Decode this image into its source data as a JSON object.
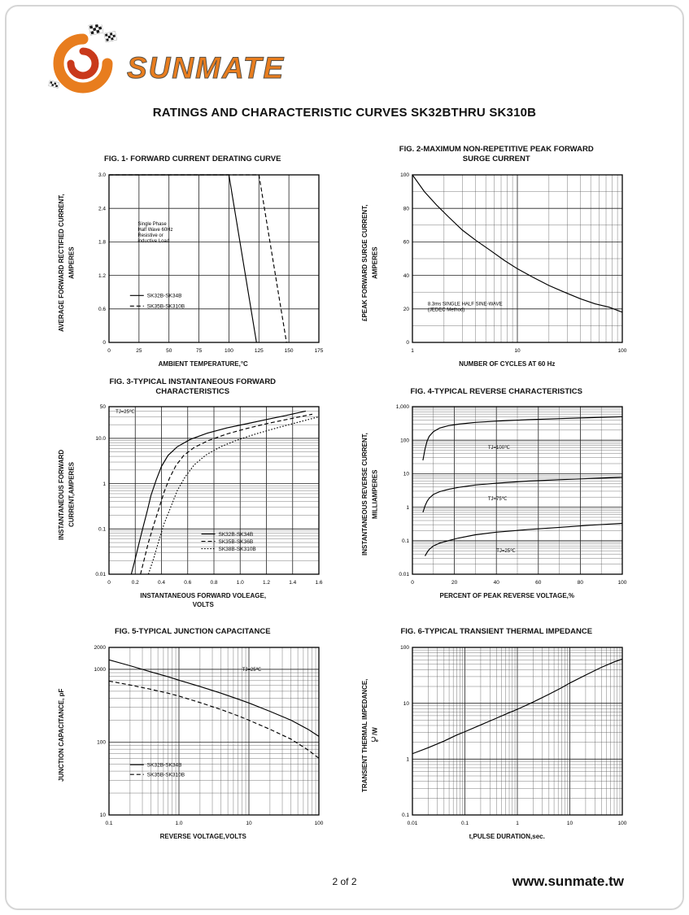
{
  "page": {
    "title": "RATINGS AND CHARACTERISTIC CURVES SK32BTHRU SK310B",
    "page_number": "2 of 2",
    "website": "www.sunmate.tw"
  },
  "brand": {
    "name": "SUNMATE",
    "colors": {
      "orange": "#E87D1E",
      "red": "#C9391B",
      "outline": "#5a5248"
    }
  },
  "chart_data": [
    {
      "id": "fig1",
      "type": "line",
      "title": "FIG. 1- FORWARD CURRENT DERATING CURVE",
      "xlabel": "AMBIENT TEMPERATURE,°C",
      "ylabel": "AVERAGE FORWARD RECTIFIED CURRENT,\nAMPERES",
      "xscale": "linear",
      "xlim": [
        0,
        175
      ],
      "xticks": [
        {
          "v": 0,
          "l": "0"
        },
        {
          "v": 25,
          "l": "25"
        },
        {
          "v": 50,
          "l": "50"
        },
        {
          "v": 75,
          "l": "75"
        },
        {
          "v": 100,
          "l": "100"
        },
        {
          "v": 125,
          "l": "125"
        },
        {
          "v": 150,
          "l": "150"
        },
        {
          "v": 175,
          "l": "175"
        }
      ],
      "yscale": "linear",
      "ylim": [
        0,
        3.0
      ],
      "yticks": [
        {
          "v": 0,
          "l": "0"
        },
        {
          "v": 0.6,
          "l": "0.6"
        },
        {
          "v": 1.2,
          "l": "1.2"
        },
        {
          "v": 1.8,
          "l": "1.8"
        },
        {
          "v": 2.4,
          "l": "2.4"
        },
        {
          "v": 3.0,
          "l": "3.0"
        }
      ],
      "x_minor_div": 1,
      "y_minor_div": 1,
      "series": [
        {
          "name": "SK32B-SK34B",
          "dash": "solid",
          "points": [
            [
              0,
              3
            ],
            [
              100,
              3
            ],
            [
              123,
              0
            ]
          ]
        },
        {
          "name": "SK35B-SK310B",
          "dash": "dashed",
          "points": [
            [
              0,
              3
            ],
            [
              125,
              3
            ],
            [
              148,
              0
            ]
          ]
        }
      ],
      "annotations": [
        {
          "text": "Single Phase\nHalf Wave 60Hz\nResistive or\ninductive Load",
          "x": 24,
          "y": 2.1,
          "anchor": "start"
        }
      ],
      "legend": {
        "x": 0.1,
        "y": 0.72,
        "spacing": 13
      }
    },
    {
      "id": "fig2",
      "type": "line",
      "title": "FIG. 2-MAXIMUM NON-REPETITIVE PEAK FORWARD\nSURGE CURRENT",
      "xlabel": "NUMBER OF CYCLES AT 60 Hz",
      "ylabel": "£PEAK  FORWARD SURGE CURRENT,\nAMPERES",
      "xscale": "log",
      "xlim": [
        1,
        100
      ],
      "xticks": [
        {
          "v": 1,
          "l": "1"
        },
        {
          "v": 10,
          "l": "10"
        },
        {
          "v": 100,
          "l": "100"
        }
      ],
      "yscale": "linear",
      "ylim": [
        0,
        100
      ],
      "yticks": [
        {
          "v": 0,
          "l": "0"
        },
        {
          "v": 20,
          "l": "20"
        },
        {
          "v": 40,
          "l": "40"
        },
        {
          "v": 60,
          "l": "60"
        },
        {
          "v": 80,
          "l": "80"
        },
        {
          "v": 100,
          "l": "100"
        }
      ],
      "y_minor_div": 2,
      "series": [
        {
          "name": "surge-current",
          "dash": "solid",
          "points": [
            [
              1,
              100
            ],
            [
              1.3,
              90
            ],
            [
              1.7,
              82
            ],
            [
              2.2,
              75
            ],
            [
              3,
              67
            ],
            [
              4,
              61
            ],
            [
              5.5,
              55
            ],
            [
              7.5,
              49
            ],
            [
              10,
              44
            ],
            [
              14,
              39
            ],
            [
              20,
              34
            ],
            [
              28,
              30
            ],
            [
              40,
              26
            ],
            [
              55,
              23
            ],
            [
              75,
              21
            ],
            [
              100,
              18
            ]
          ]
        }
      ],
      "annotations": [
        {
          "text": "8.3ms SINGLE HALF SINE-WAVE\n(JEDEC Method)",
          "x": 1.4,
          "y": 22,
          "anchor": "start"
        }
      ]
    },
    {
      "id": "fig3",
      "type": "line",
      "title": "FIG. 3-TYPICAL INSTANTANEOUS FORWARD\nCHARACTERISTICS",
      "xlabel": "INSTANTANEOUS FORWARD VOLEAGE,\nVOLTS",
      "ylabel": "INSTANTANEOUS FORWARD\nCURRENT,AMPERES",
      "xscale": "linear",
      "xlim": [
        0,
        1.6
      ],
      "xticks": [
        {
          "v": 0,
          "l": "0"
        },
        {
          "v": 0.2,
          "l": "0.2"
        },
        {
          "v": 0.4,
          "l": "0.4"
        },
        {
          "v": 0.6,
          "l": "0.6"
        },
        {
          "v": 0.8,
          "l": "0.8"
        },
        {
          "v": 1.0,
          "l": "1.0"
        },
        {
          "v": 1.2,
          "l": "1.2"
        },
        {
          "v": 1.4,
          "l": "1.4"
        },
        {
          "v": 1.6,
          "l": "1.6"
        }
      ],
      "yscale": "log",
      "ylim": [
        0.01,
        50
      ],
      "yticks": [
        {
          "v": 0.01,
          "l": "0.01"
        },
        {
          "v": 0.1,
          "l": "0.1"
        },
        {
          "v": 1,
          "l": "1"
        },
        {
          "v": 10,
          "l": "10.0"
        },
        {
          "v": 50,
          "l": "50"
        }
      ],
      "x_minor_div": 1,
      "series": [
        {
          "name": "SK32B-SK34B",
          "dash": "solid",
          "points": [
            [
              0.17,
              0.01
            ],
            [
              0.2,
              0.022
            ],
            [
              0.23,
              0.05
            ],
            [
              0.26,
              0.11
            ],
            [
              0.29,
              0.24
            ],
            [
              0.32,
              0.55
            ],
            [
              0.36,
              1.2
            ],
            [
              0.4,
              2.4
            ],
            [
              0.45,
              4.2
            ],
            [
              0.52,
              6.5
            ],
            [
              0.62,
              9.5
            ],
            [
              0.75,
              13
            ],
            [
              0.9,
              17
            ],
            [
              1.05,
              21
            ],
            [
              1.2,
              26
            ],
            [
              1.35,
              32
            ],
            [
              1.5,
              40
            ]
          ]
        },
        {
          "name": "SK35B-SK36B",
          "dash": "dashed",
          "points": [
            [
              0.24,
              0.01
            ],
            [
              0.27,
              0.022
            ],
            [
              0.3,
              0.05
            ],
            [
              0.34,
              0.12
            ],
            [
              0.38,
              0.28
            ],
            [
              0.42,
              0.65
            ],
            [
              0.46,
              1.3
            ],
            [
              0.51,
              2.5
            ],
            [
              0.57,
              4.2
            ],
            [
              0.65,
              6.3
            ],
            [
              0.76,
              9
            ],
            [
              0.9,
              12.5
            ],
            [
              1.05,
              16.5
            ],
            [
              1.2,
              21
            ],
            [
              1.38,
              27
            ],
            [
              1.55,
              34
            ]
          ]
        },
        {
          "name": "SK38B-SK310B",
          "dash": "dotted",
          "points": [
            [
              0.3,
              0.01
            ],
            [
              0.34,
              0.022
            ],
            [
              0.38,
              0.055
            ],
            [
              0.42,
              0.13
            ],
            [
              0.47,
              0.3
            ],
            [
              0.52,
              0.7
            ],
            [
              0.58,
              1.4
            ],
            [
              0.65,
              2.6
            ],
            [
              0.74,
              4.3
            ],
            [
              0.85,
              6.5
            ],
            [
              0.98,
              9.2
            ],
            [
              1.12,
              12.5
            ],
            [
              1.28,
              17
            ],
            [
              1.45,
              23
            ],
            [
              1.6,
              30
            ]
          ]
        }
      ],
      "annotations": [
        {
          "text": "TJ=25℃",
          "x": 0.05,
          "y": 36,
          "anchor": "start"
        }
      ],
      "legend": {
        "x": 0.44,
        "y": 0.76,
        "spacing": 9
      }
    },
    {
      "id": "fig4",
      "type": "line",
      "title": "FIG. 4-TYPICAL REVERSE CHARACTERISTICS",
      "xlabel": "PERCENT OF PEAK REVERSE VOLTAGE,%",
      "ylabel": "INSTANTANEOUS REVERSE CURRENT,\nMILLIAMPERES",
      "xscale": "linear",
      "xlim": [
        0,
        100
      ],
      "xticks": [
        {
          "v": 0,
          "l": "0"
        },
        {
          "v": 20,
          "l": "20"
        },
        {
          "v": 40,
          "l": "40"
        },
        {
          "v": 60,
          "l": "60"
        },
        {
          "v": 80,
          "l": "80"
        },
        {
          "v": 100,
          "l": "100"
        }
      ],
      "yscale": "log",
      "ylim": [
        0.01,
        1000
      ],
      "yticks": [
        {
          "v": 0.01,
          "l": "0.01"
        },
        {
          "v": 0.1,
          "l": "0.1"
        },
        {
          "v": 1,
          "l": "1"
        },
        {
          "v": 10,
          "l": "10"
        },
        {
          "v": 100,
          "l": "100"
        },
        {
          "v": 1000,
          "l": "1,000"
        }
      ],
      "x_minor_div": 2,
      "series": [
        {
          "name": "TJ-100C",
          "dash": "solid",
          "points": [
            [
              5,
              25
            ],
            [
              6,
              55
            ],
            [
              7,
              95
            ],
            [
              8,
              130
            ],
            [
              10,
              180
            ],
            [
              13,
              230
            ],
            [
              17,
              270
            ],
            [
              22,
              300
            ],
            [
              30,
              340
            ],
            [
              40,
              370
            ],
            [
              55,
              410
            ],
            [
              70,
              440
            ],
            [
              85,
              470
            ],
            [
              100,
              500
            ]
          ]
        },
        {
          "name": "TJ-75C",
          "dash": "solid",
          "points": [
            [
              5,
              0.7
            ],
            [
              6,
              1.1
            ],
            [
              7,
              1.5
            ],
            [
              8,
              1.85
            ],
            [
              10,
              2.4
            ],
            [
              13,
              2.9
            ],
            [
              17,
              3.4
            ],
            [
              22,
              3.9
            ],
            [
              30,
              4.6
            ],
            [
              40,
              5.2
            ],
            [
              55,
              6.0
            ],
            [
              70,
              6.6
            ],
            [
              85,
              7.2
            ],
            [
              100,
              7.8
            ]
          ]
        },
        {
          "name": "TJ-25C",
          "dash": "solid",
          "points": [
            [
              6,
              0.035
            ],
            [
              7,
              0.045
            ],
            [
              8,
              0.055
            ],
            [
              10,
              0.07
            ],
            [
              13,
              0.085
            ],
            [
              17,
              0.1
            ],
            [
              22,
              0.12
            ],
            [
              30,
              0.15
            ],
            [
              40,
              0.18
            ],
            [
              55,
              0.215
            ],
            [
              70,
              0.25
            ],
            [
              85,
              0.29
            ],
            [
              100,
              0.33
            ]
          ]
        }
      ],
      "annotations": [
        {
          "text": "TJ=100℃",
          "x": 36,
          "y": 55,
          "anchor": "start"
        },
        {
          "text": "TJ=75℃",
          "x": 36,
          "y": 1.6,
          "anchor": "start"
        },
        {
          "text": "TJ=25℃",
          "x": 40,
          "y": 0.045,
          "anchor": "start"
        }
      ]
    },
    {
      "id": "fig5",
      "type": "line",
      "title": "FIG. 5-TYPICAL JUNCTION CAPACITANCE",
      "xlabel": "REVERSE VOLTAGE,VOLTS",
      "ylabel": "JUNCTION CAPACITANCE, pF",
      "xscale": "log",
      "xlim": [
        0.1,
        100
      ],
      "xticks": [
        {
          "v": 0.1,
          "l": "0.1"
        },
        {
          "v": 1,
          "l": "1.0"
        },
        {
          "v": 10,
          "l": "10"
        },
        {
          "v": 100,
          "l": "100"
        }
      ],
      "yscale": "log",
      "ylim": [
        10,
        2000
      ],
      "yticks": [
        {
          "v": 10,
          "l": "10"
        },
        {
          "v": 100,
          "l": "100"
        },
        {
          "v": 1000,
          "l": "1000"
        },
        {
          "v": 2000,
          "l": "2000"
        }
      ],
      "series": [
        {
          "name": "SK32B-SK34B",
          "dash": "solid",
          "points": [
            [
              0.1,
              1350
            ],
            [
              0.2,
              1120
            ],
            [
              0.4,
              920
            ],
            [
              0.7,
              790
            ],
            [
              1,
              710
            ],
            [
              2,
              580
            ],
            [
              4,
              470
            ],
            [
              7,
              390
            ],
            [
              10,
              345
            ],
            [
              20,
              265
            ],
            [
              40,
              200
            ],
            [
              70,
              150
            ],
            [
              100,
              120
            ]
          ]
        },
        {
          "name": "SK35B-SK310B",
          "dash": "dashed",
          "points": [
            [
              0.1,
              690
            ],
            [
              0.2,
              610
            ],
            [
              0.4,
              530
            ],
            [
              0.7,
              470
            ],
            [
              1,
              430
            ],
            [
              2,
              350
            ],
            [
              4,
              280
            ],
            [
              7,
              230
            ],
            [
              10,
              200
            ],
            [
              20,
              150
            ],
            [
              40,
              110
            ],
            [
              70,
              78
            ],
            [
              100,
              60
            ]
          ]
        }
      ],
      "annotations": [
        {
          "text": "TJ=25℃",
          "x": 8,
          "y": 950,
          "anchor": "start"
        }
      ],
      "legend": {
        "x": 0.1,
        "y": 0.7,
        "spacing": 12
      }
    },
    {
      "id": "fig6",
      "type": "line",
      "title": "FIG. 6-TYPICAL TRANSIENT THERMAL IMPEDANCE",
      "xlabel": "t,PULSE DURATION,sec.",
      "ylabel": "TRANSIENT THERMAL IMPEDANCE,\n℃/W",
      "xscale": "log",
      "xlim": [
        0.01,
        100
      ],
      "xticks": [
        {
          "v": 0.01,
          "l": "0.01"
        },
        {
          "v": 0.1,
          "l": "0.1"
        },
        {
          "v": 1,
          "l": "1"
        },
        {
          "v": 10,
          "l": "10"
        },
        {
          "v": 100,
          "l": "100"
        }
      ],
      "yscale": "log",
      "ylim": [
        0.1,
        100
      ],
      "yticks": [
        {
          "v": 0.1,
          "l": "0.1"
        },
        {
          "v": 1,
          "l": "1"
        },
        {
          "v": 10,
          "l": "10"
        },
        {
          "v": 100,
          "l": "100"
        }
      ],
      "series": [
        {
          "name": "thermal-impedance",
          "dash": "solid",
          "points": [
            [
              0.01,
              1.25
            ],
            [
              0.02,
              1.6
            ],
            [
              0.04,
              2.1
            ],
            [
              0.07,
              2.7
            ],
            [
              0.1,
              3.1
            ],
            [
              0.2,
              4.1
            ],
            [
              0.4,
              5.4
            ],
            [
              0.7,
              6.8
            ],
            [
              1,
              7.8
            ],
            [
              2,
              10.5
            ],
            [
              4,
              14.5
            ],
            [
              7,
              19
            ],
            [
              10,
              23
            ],
            [
              20,
              32
            ],
            [
              40,
              44
            ],
            [
              70,
              55
            ],
            [
              100,
              62
            ]
          ]
        }
      ],
      "annotations": []
    }
  ]
}
